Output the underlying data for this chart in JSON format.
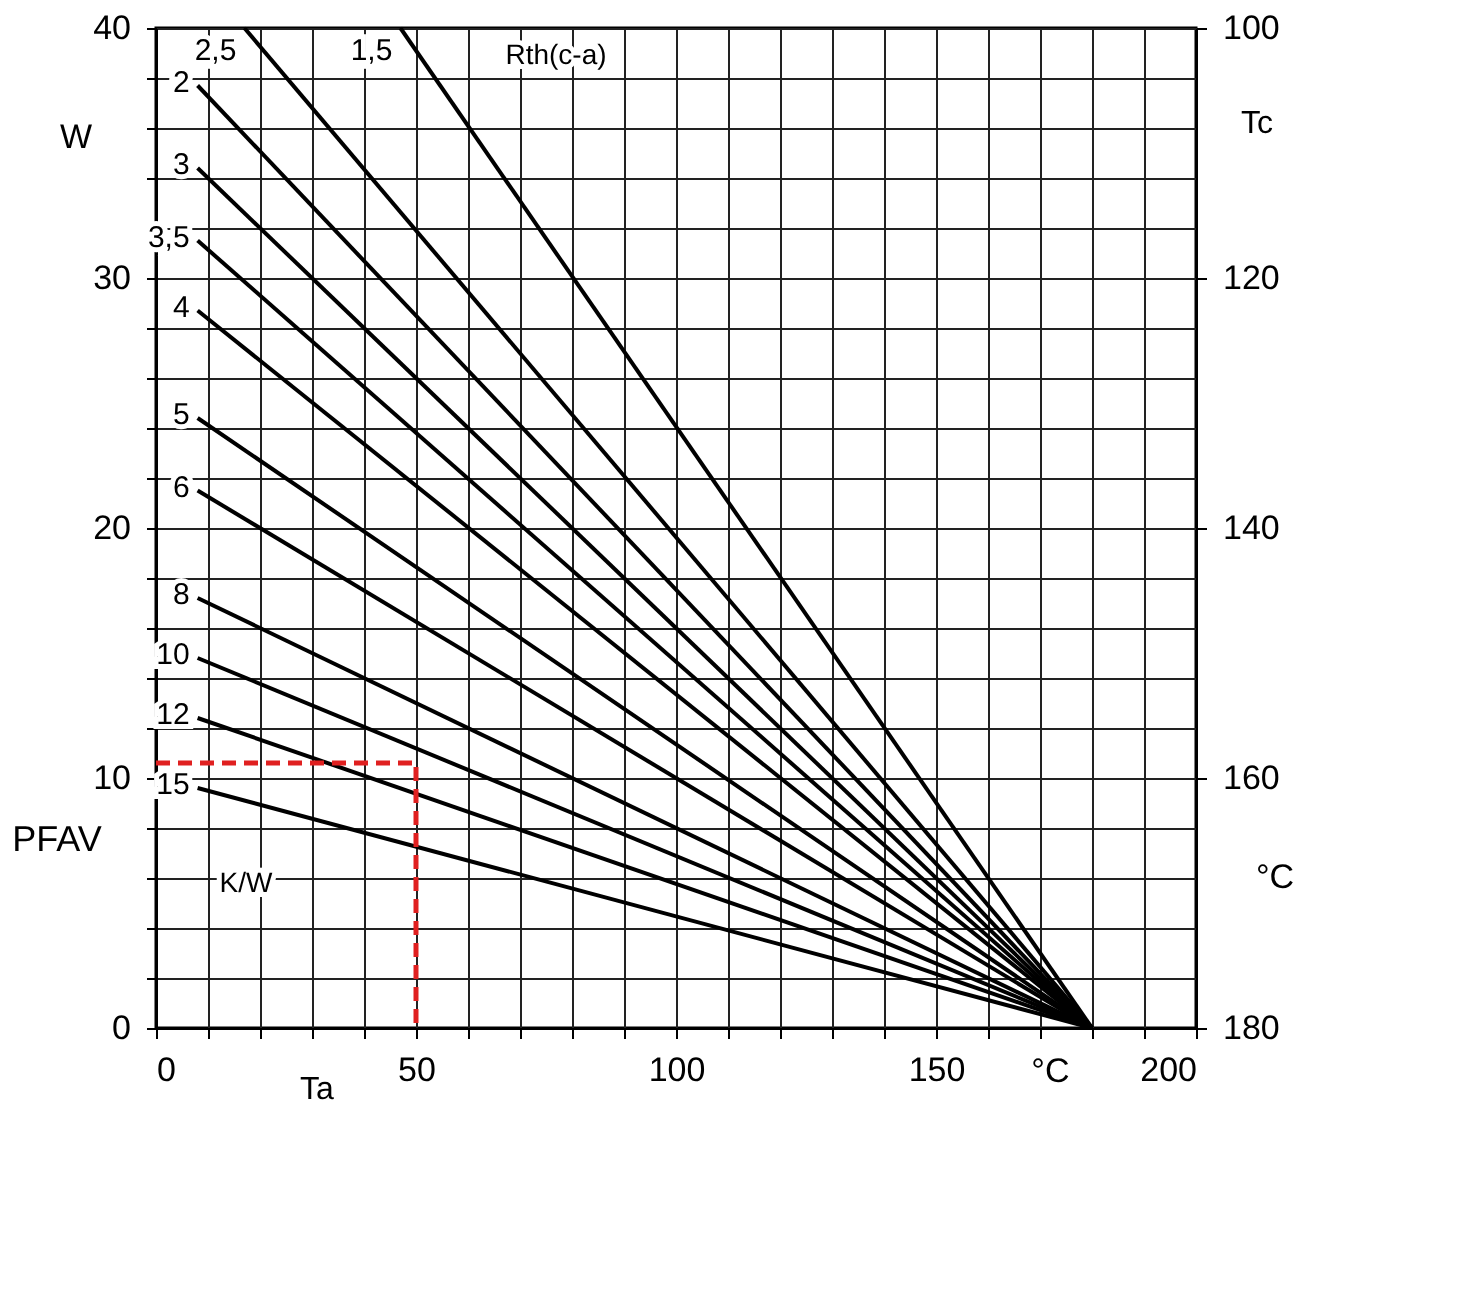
{
  "chart_data": {
    "type": "line",
    "xlabel": "Ta",
    "ylabel": "PFAV",
    "y2label": "Tc",
    "annotations": [
      "W",
      "°C",
      "°C",
      "K/W",
      "Rth(c-a)"
    ],
    "xlim": [
      0,
      200
    ],
    "ylim": [
      0,
      40
    ],
    "y2lim": [
      180,
      100
    ],
    "xticks": [
      0,
      {
        "value": 10,
        "label": null
      },
      {
        "value": 20,
        "label": null
      },
      {
        "value": 30,
        "label": null
      },
      {
        "value": 40,
        "label": null
      },
      50,
      {
        "value": 60,
        "label": null
      },
      {
        "value": 70,
        "label": null
      },
      {
        "value": 80,
        "label": null
      },
      {
        "value": 90,
        "label": null
      },
      100,
      {
        "value": 110,
        "label": null
      },
      {
        "value": 120,
        "label": null
      },
      {
        "value": 130,
        "label": null
      },
      {
        "value": 140,
        "label": null
      },
      150,
      {
        "value": 160,
        "label": null
      },
      {
        "value": 170,
        "label": null
      },
      {
        "value": 180,
        "label": null
      },
      {
        "value": 190,
        "label": null
      },
      200
    ],
    "yticks": [
      0,
      {
        "value": 2,
        "label": null
      },
      {
        "value": 4,
        "label": null
      },
      {
        "value": 6,
        "label": null
      },
      {
        "value": 8,
        "label": null
      },
      10,
      {
        "value": 12,
        "label": null
      },
      {
        "value": 14,
        "label": null
      },
      {
        "value": 16,
        "label": null
      },
      {
        "value": 18,
        "label": null
      },
      20,
      {
        "value": 22,
        "label": null
      },
      {
        "value": 24,
        "label": null
      },
      {
        "value": 26,
        "label": null
      },
      {
        "value": 28,
        "label": null
      },
      30,
      {
        "value": 32,
        "label": null
      },
      {
        "value": 34,
        "label": null
      },
      {
        "value": 36,
        "label": null
      },
      {
        "value": 38,
        "label": null
      },
      40
    ],
    "y2ticks": [
      100,
      120,
      140,
      160,
      180
    ],
    "grid": true,
    "marker": "none",
    "line_style": "solid",
    "series": [
      {
        "name": "2",
        "color": "#000000",
        "x": [
          8,
          180
        ],
        "values": [
          37.7,
          0
        ]
      },
      {
        "name": "2,5",
        "color": "#000000",
        "x": [
          17,
          180
        ],
        "values": [
          40,
          0
        ]
      },
      {
        "name": "1,5",
        "color": "#000000",
        "x": [
          47,
          180
        ],
        "values": [
          40,
          0
        ]
      },
      {
        "name": "3",
        "color": "#000000",
        "x": [
          8,
          180
        ],
        "values": [
          34.4,
          0
        ]
      },
      {
        "name": "3,5",
        "color": "#000000",
        "x": [
          8,
          180
        ],
        "values": [
          31.5,
          0
        ]
      },
      {
        "name": "4",
        "color": "#000000",
        "x": [
          8,
          180
        ],
        "values": [
          28.7,
          0
        ]
      },
      {
        "name": "5",
        "color": "#000000",
        "x": [
          8,
          180
        ],
        "values": [
          24.4,
          0
        ]
      },
      {
        "name": "6",
        "color": "#000000",
        "x": [
          8,
          180
        ],
        "values": [
          21.5,
          0
        ]
      },
      {
        "name": "8",
        "color": "#000000",
        "x": [
          8,
          180
        ],
        "values": [
          17.2,
          0
        ]
      },
      {
        "name": "10",
        "color": "#000000",
        "x": [
          8,
          180
        ],
        "values": [
          14.8,
          0
        ]
      },
      {
        "name": "12",
        "color": "#000000",
        "x": [
          8,
          180
        ],
        "values": [
          12.4,
          0
        ]
      },
      {
        "name": "15",
        "color": "#000000",
        "x": [
          8,
          180
        ],
        "values": [
          9.6,
          0
        ]
      },
      {
        "color": "#e02020",
        "line_style": "dashed",
        "x": [
          0,
          50,
          50
        ],
        "values": [
          10.6,
          10.6,
          0
        ]
      }
    ]
  }
}
